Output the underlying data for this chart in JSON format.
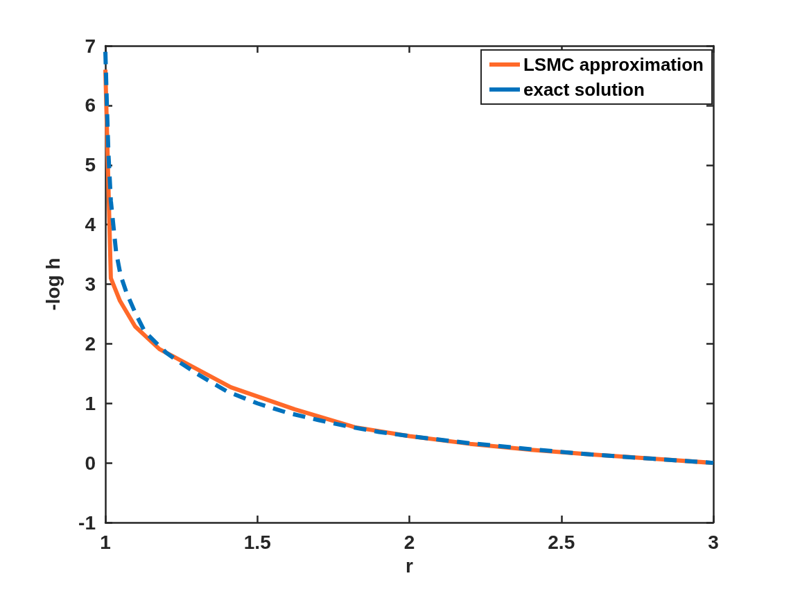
{
  "chart_data": {
    "type": "line",
    "xlabel": "r",
    "ylabel": "-log h",
    "xlim": [
      1,
      3
    ],
    "xticks": [
      1,
      1.5,
      2,
      2.5,
      3
    ],
    "ylim": [
      -1,
      7
    ],
    "yticks": [
      -1,
      0,
      1,
      2,
      3,
      4,
      5,
      6,
      7
    ],
    "grid": false,
    "legend": "top right",
    "marker": "none",
    "series": [
      {
        "name": "LSMC approximation",
        "color": "#ff6929",
        "line_style": "solid",
        "x": [
          1,
          1.018,
          1.048,
          1.098,
          1.178,
          1.413,
          1.623,
          1.82,
          2,
          2.2,
          2.4,
          2.6,
          2.8,
          3
        ],
        "values": [
          6.6,
          3.1,
          2.72,
          2.29,
          1.91,
          1.27,
          0.9,
          0.6,
          0.45,
          0.32,
          0.22,
          0.14,
          0.07,
          0
        ]
      },
      {
        "name": "exact solution",
        "color": "#0072bd",
        "line_style": "dashed",
        "x": [
          1,
          1.005,
          1.01,
          1.018,
          1.035,
          1.05,
          1.07,
          1.1,
          1.13,
          1.2,
          1.25,
          1.3,
          1.4,
          1.5,
          1.6,
          1.7,
          1.8,
          1.9,
          2,
          2.2,
          2.4,
          2.6,
          2.8,
          3
        ],
        "values": [
          6.9,
          6.0,
          5.2,
          4.4,
          3.55,
          3.15,
          2.85,
          2.5,
          2.2,
          1.85,
          1.67,
          1.5,
          1.2,
          1.0,
          0.84,
          0.72,
          0.61,
          0.52,
          0.45,
          0.33,
          0.23,
          0.14,
          0.07,
          0
        ]
      }
    ]
  }
}
